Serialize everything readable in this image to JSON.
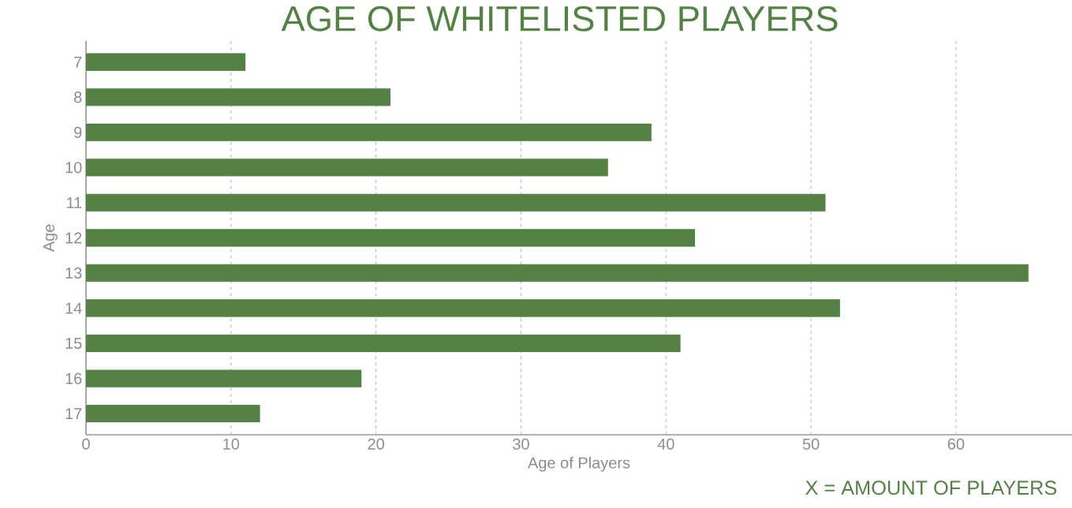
{
  "chart_data": {
    "type": "bar",
    "orientation": "horizontal",
    "title": "AGE OF WHITELISTED PLAYERS",
    "xlabel": "Age of Players",
    "ylabel": "Age",
    "categories": [
      "7",
      "8",
      "9",
      "10",
      "11",
      "12",
      "13",
      "14",
      "15",
      "16",
      "17"
    ],
    "values": [
      11,
      21,
      39,
      36,
      51,
      42,
      65,
      52,
      41,
      19,
      12
    ],
    "color": "#548245",
    "xlim": [
      0,
      68
    ],
    "xticks": [
      0,
      10,
      20,
      30,
      40,
      50,
      60
    ],
    "grid": "x",
    "annotations": [
      "X = AMOUNT OF PLAYERS"
    ]
  }
}
